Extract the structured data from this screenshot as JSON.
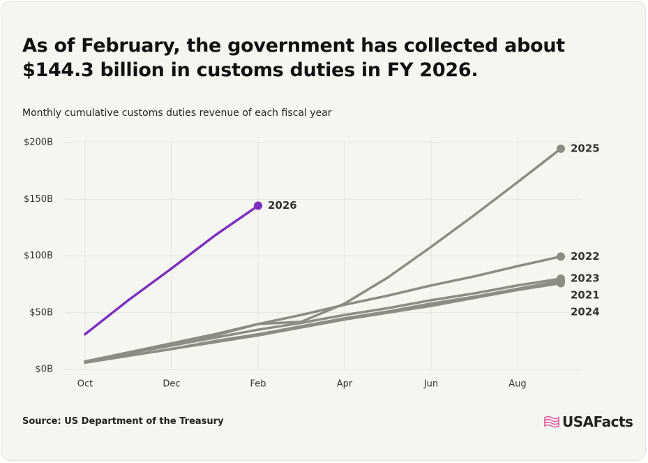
{
  "chart_data": {
    "type": "line",
    "title": "As of February, the government has collected about $144.3 billion in customs duties in FY 2026.",
    "subtitle": "Monthly cumulative customs duties revenue of each fiscal year",
    "categories": [
      "Oct",
      null,
      "Dec",
      null,
      "Feb",
      null,
      "Apr",
      null,
      "Jun",
      null,
      "Aug",
      null
    ],
    "series": [
      {
        "name": "2025",
        "color": "#8c8c87",
        "values": [
          7,
          14,
          22,
          30,
          40,
          42,
          58,
          81,
          108,
          136,
          165,
          194.5
        ]
      },
      {
        "name": "2022",
        "color": "#8c8c87",
        "values": [
          7,
          15,
          23,
          31,
          40,
          48,
          57,
          65,
          74,
          82,
          91,
          99.5
        ]
      },
      {
        "name": "2023",
        "color": "#8c8c87",
        "values": [
          7,
          14,
          21,
          28,
          35,
          41,
          48,
          54,
          61,
          67,
          74,
          80
        ]
      },
      {
        "name": "2021",
        "color": "#8c8c87",
        "values": [
          6,
          12,
          18,
          25,
          31,
          38,
          45,
          51,
          58,
          64,
          71,
          78
        ]
      },
      {
        "name": "2024",
        "color": "#8c8c87",
        "values": [
          6,
          12,
          18,
          24,
          30,
          37,
          44,
          50,
          56,
          63,
          70,
          76
        ]
      },
      {
        "name": "2026",
        "color": "#7b2fc0",
        "values": [
          31,
          61,
          89,
          118,
          144.3,
          null,
          null,
          null,
          null,
          null,
          null,
          null
        ]
      }
    ],
    "ylim": [
      0,
      200
    ],
    "yticks": [
      {
        "value": 0,
        "label": "$0B"
      },
      {
        "value": 50,
        "label": "$50B"
      },
      {
        "value": 100,
        "label": "$100B"
      },
      {
        "value": 150,
        "label": "$150B"
      },
      {
        "value": 200,
        "label": "$200B"
      }
    ],
    "grid": true,
    "source": "Source: US Department of the Treasury"
  },
  "brand": "USAFacts"
}
